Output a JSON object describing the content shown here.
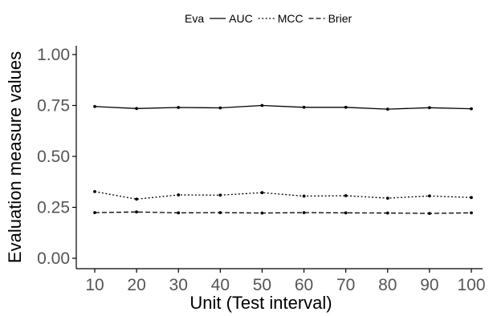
{
  "chart_data": {
    "type": "line",
    "title": "",
    "xlabel": "Unit (Test interval)",
    "ylabel": "Evaluation measure values",
    "x": [
      10,
      20,
      30,
      40,
      50,
      60,
      70,
      80,
      90,
      100
    ],
    "xlim": [
      10,
      100
    ],
    "ylim": [
      0,
      1
    ],
    "x_ticks": [
      "10",
      "20",
      "30",
      "40",
      "50",
      "60",
      "70",
      "80",
      "90",
      "100"
    ],
    "y_ticks": [
      "0.00",
      "0.25",
      "0.50",
      "0.75",
      "1.00"
    ],
    "grid": false,
    "legend": {
      "title": "Eva",
      "position": "top"
    },
    "series": [
      {
        "name": "AUC",
        "style": "solid",
        "values": [
          0.745,
          0.735,
          0.74,
          0.738,
          0.75,
          0.741,
          0.741,
          0.732,
          0.739,
          0.734
        ]
      },
      {
        "name": "MCC",
        "style": "dotted",
        "values": [
          0.327,
          0.29,
          0.311,
          0.31,
          0.322,
          0.305,
          0.307,
          0.295,
          0.306,
          0.298
        ]
      },
      {
        "name": "Brier",
        "style": "dashed",
        "values": [
          0.224,
          0.227,
          0.223,
          0.224,
          0.222,
          0.224,
          0.223,
          0.222,
          0.22,
          0.223
        ]
      }
    ],
    "colors": {
      "line": "#000000",
      "axis": "#000000",
      "tick_label": "#555555"
    }
  }
}
